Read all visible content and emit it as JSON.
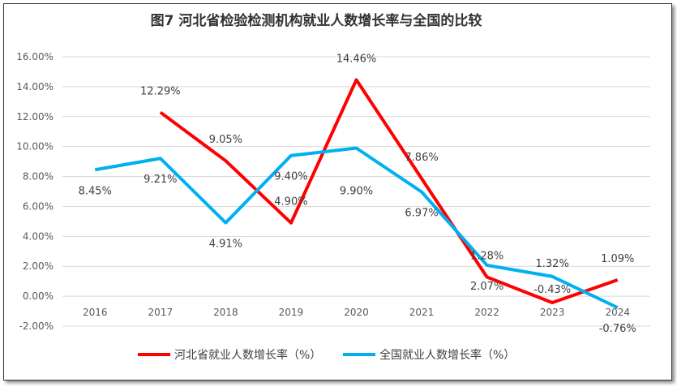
{
  "chart_data": {
    "type": "line",
    "title": "图7  河北省检验检测机构就业人数增长率与全国的比较",
    "categories": [
      "2016",
      "2017",
      "2018",
      "2019",
      "2020",
      "2021",
      "2022",
      "2023",
      "2024"
    ],
    "ylim": [
      -2,
      16
    ],
    "yticks": [
      "-2.00%",
      "0.00%",
      "2.00%",
      "4.00%",
      "6.00%",
      "8.00%",
      "10.00%",
      "12.00%",
      "14.00%",
      "16.00%"
    ],
    "grid": true,
    "legend": "bottom",
    "series": [
      {
        "name": "河北省就业人数增长率（%）",
        "color": "#FF0000",
        "values": [
          null,
          12.29,
          9.05,
          4.9,
          14.46,
          7.86,
          1.28,
          -0.43,
          1.09
        ],
        "labels": [
          "",
          "12.29%",
          "9.05%",
          "4.90%",
          "14.46%",
          "7.86%",
          "1.28%",
          "-0.43%",
          "1.09%"
        ]
      },
      {
        "name": "全国就业人数增长率（%）",
        "color": "#00B0F0",
        "values": [
          8.45,
          9.21,
          4.91,
          9.4,
          9.9,
          6.97,
          2.07,
          1.32,
          -0.76
        ],
        "labels": [
          "8.45%",
          "9.21%",
          "4.91%",
          "9.40%",
          "9.90%",
          "6.97%",
          "2.07%",
          "1.32%",
          "-0.76%"
        ]
      }
    ]
  }
}
